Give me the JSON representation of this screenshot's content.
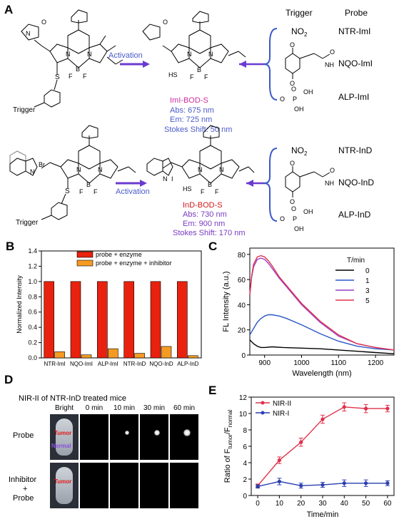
{
  "panels": {
    "a": "A",
    "b": "B",
    "c": "C",
    "d": "D",
    "e": "E"
  },
  "panel_a": {
    "header_trigger": "Trigger",
    "header_probe": "Probe",
    "trigger_label": "Trigger",
    "activation_label": "Activation",
    "row1": {
      "name": "ImI-BOD-S",
      "abs": "Abs: 675 nm",
      "em": "Em:   725 nm",
      "stokes": "Stokes Shift: 50 nm",
      "triggers": [
        "NO2",
        "quinone",
        "phosphate"
      ],
      "probes": [
        "NTR-ImI",
        "NQO-ImI",
        "ALP-ImI"
      ]
    },
    "row2": {
      "name": "InD-BOD-S",
      "abs": "Abs: 730 nm",
      "em": "Em:   900 nm",
      "stokes": "Stokes Shift: 170 nm",
      "probes": [
        "NTR-InD",
        "NQO-InD",
        "ALP-InD"
      ]
    },
    "no2_text": "NO",
    "no2_sub": "2",
    "br_text": "Br",
    "i_text": "I",
    "atoms": {
      "s": "S",
      "hs": "HS",
      "b": "B",
      "f": "F",
      "n": "N",
      "o": "O",
      "p": "P",
      "h": "H",
      "oh": "OH"
    }
  },
  "chart_data": [
    {
      "id": "B",
      "type": "bar",
      "categories": [
        "NTR-ImI",
        "NQO-ImI",
        "ALP-ImI",
        "NTR-InD",
        "NQO-InD",
        "ALP-InD"
      ],
      "series": [
        {
          "name": "probe + enzyme",
          "color": "#e8220e",
          "values": [
            1.0,
            1.0,
            1.0,
            1.0,
            1.0,
            1.0
          ]
        },
        {
          "name": "probe + enzyme + inhibitor",
          "color": "#f59a23",
          "values": [
            0.08,
            0.04,
            0.12,
            0.06,
            0.15,
            0.03
          ]
        }
      ],
      "ylabel": "Normalized Intensity",
      "ylim": [
        0,
        1.4
      ],
      "yticks": [
        0.0,
        0.2,
        0.4,
        0.6,
        0.8,
        1.0,
        1.2,
        1.4
      ],
      "legend_placement": "top"
    },
    {
      "id": "C",
      "type": "line",
      "xlabel": "Wavelength (nm)",
      "ylabel": "FL Intensity (a.u.)",
      "xlim": [
        860,
        1250
      ],
      "ylim": [
        0,
        85
      ],
      "xticks": [
        900,
        1000,
        1100,
        1200
      ],
      "yticks": [
        0,
        20,
        40,
        60,
        80
      ],
      "legend_title": "T/min",
      "series": [
        {
          "name": "0",
          "color": "#000000",
          "x": [
            860,
            870,
            880,
            890,
            900,
            920,
            950,
            1000,
            1050,
            1100,
            1150,
            1200,
            1250
          ],
          "y": [
            12,
            9,
            7,
            6,
            6,
            6.5,
            6,
            5.5,
            5,
            4,
            3,
            2,
            1
          ]
        },
        {
          "name": "1",
          "color": "#2a56c6",
          "x": [
            860,
            870,
            880,
            890,
            900,
            910,
            920,
            940,
            960,
            1000,
            1050,
            1100,
            1150,
            1200,
            1250
          ],
          "y": [
            16,
            21,
            26,
            29,
            31,
            32,
            32,
            31,
            29,
            24,
            17,
            11,
            7,
            5,
            4
          ]
        },
        {
          "name": "3",
          "color": "#9b3fc7",
          "x": [
            860,
            865,
            870,
            880,
            890,
            900,
            910,
            920,
            940,
            960,
            1000,
            1050,
            1100,
            1150,
            1200,
            1250
          ],
          "y": [
            48,
            62,
            70,
            76,
            77,
            76,
            73,
            69,
            61,
            54,
            40,
            26,
            15,
            9,
            6,
            4
          ]
        },
        {
          "name": "5",
          "color": "#e0304a",
          "x": [
            860,
            865,
            870,
            880,
            890,
            900,
            910,
            920,
            940,
            960,
            1000,
            1050,
            1100,
            1150,
            1200,
            1250
          ],
          "y": [
            48,
            63,
            72,
            78,
            79,
            78,
            75,
            71,
            62,
            55,
            41,
            27,
            16,
            9,
            6,
            4
          ]
        }
      ],
      "legend_placement": "top-right"
    },
    {
      "id": "E",
      "type": "line",
      "xlabel": "Time/min",
      "ylabel_main": "Ratio of F",
      "ylabel_sub1": "tumor",
      "ylabel_mid": "/F",
      "ylabel_sub2": "normal",
      "xlim": [
        -3,
        63
      ],
      "ylim": [
        0,
        12
      ],
      "xticks": [
        0,
        10,
        20,
        30,
        40,
        50,
        60
      ],
      "yticks": [
        0,
        2,
        4,
        6,
        8,
        10,
        12
      ],
      "series": [
        {
          "name": "NIR-II",
          "color": "#e0304a",
          "x": [
            0,
            10,
            20,
            30,
            40,
            50,
            60
          ],
          "y": [
            1.2,
            4.3,
            6.5,
            9.3,
            10.8,
            10.6,
            10.6
          ],
          "err": [
            0.2,
            0.4,
            0.5,
            0.5,
            0.5,
            0.5,
            0.4
          ]
        },
        {
          "name": "NIR-I",
          "color": "#2a3fb0",
          "x": [
            0,
            10,
            20,
            30,
            40,
            50,
            60
          ],
          "y": [
            1.1,
            1.7,
            1.2,
            1.3,
            1.5,
            1.5,
            1.5
          ],
          "err": [
            0.2,
            0.4,
            0.3,
            0.3,
            0.4,
            0.4,
            0.3
          ]
        }
      ],
      "legend_placement": "top-left"
    }
  ],
  "panel_d": {
    "title": "NIR-II of NTR-InD treated mice",
    "columns": [
      "Bright",
      "0 min",
      "10 min",
      "30 min",
      "60 min"
    ],
    "rows": [
      "Probe",
      "Inhibitor",
      "+",
      "Probe"
    ],
    "tumor_label": "Tumor",
    "normal_label": "Normal",
    "signal_levels": [
      0,
      0.35,
      0.6,
      0.7
    ]
  }
}
